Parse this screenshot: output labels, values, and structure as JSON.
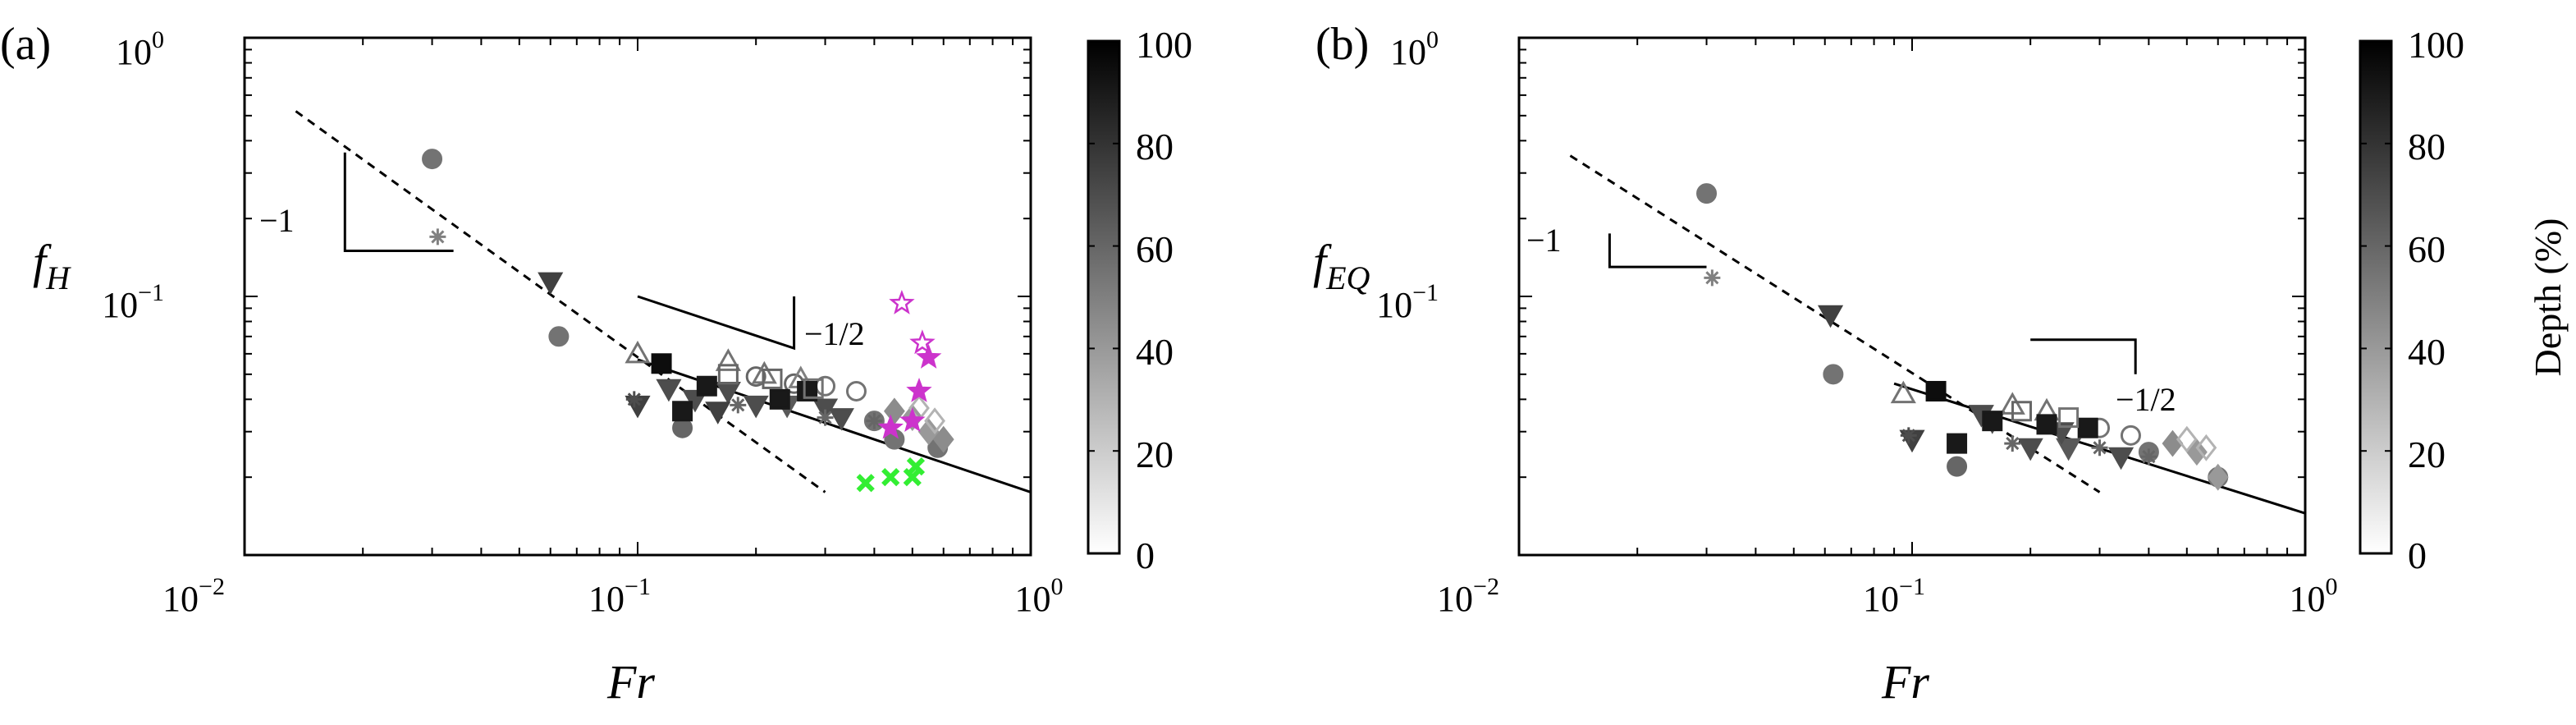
{
  "colorbar": {
    "label": "Depth (%)",
    "ticks": [
      "0",
      "20",
      "40",
      "60",
      "80",
      "100"
    ],
    "range": [
      0,
      100
    ]
  },
  "chart_data": [
    {
      "type": "scatter",
      "panel": "(a)",
      "xscale": "log",
      "yscale": "log",
      "xlim": [
        0.01,
        1
      ],
      "ylim": [
        0.01,
        1
      ],
      "xlabel": "Fr",
      "ylabel": "f_H",
      "xticks": [
        0.01,
        0.1,
        1
      ],
      "yticks": [
        0.1,
        1
      ],
      "slope_annotations": [
        {
          "label": "−1",
          "lines": [
            [
              0.018,
              0.36
            ],
            [
              0.018,
              0.15
            ],
            [
              0.034,
              0.15
            ]
          ]
        },
        {
          "label": "−1/2",
          "lines": [
            [
              0.1,
              0.1
            ],
            [
              0.25,
              0.063
            ],
            [
              0.25,
              0.1
            ]
          ]
        }
      ],
      "trend_lines": [
        {
          "style": "dashed",
          "points": [
            [
              0.0135,
              0.52
            ],
            [
              0.3,
              0.0175
            ]
          ]
        },
        {
          "style": "solid",
          "points": [
            [
              0.1,
              0.057
            ],
            [
              1,
              0.0175
            ]
          ]
        }
      ],
      "series": [
        {
          "marker": "circle",
          "fill": "filled",
          "points": [
            [
              0.03,
              0.34,
              55
            ],
            [
              0.063,
              0.07,
              55
            ],
            [
              0.13,
              0.031,
              60
            ],
            [
              0.4,
              0.033,
              55
            ],
            [
              0.58,
              0.026,
              55
            ],
            [
              0.45,
              0.028,
              55
            ]
          ]
        },
        {
          "marker": "circle",
          "fill": "open",
          "points": [
            [
              0.2,
              0.049,
              60
            ],
            [
              0.25,
              0.046,
              60
            ],
            [
              0.3,
              0.045,
              55
            ],
            [
              0.36,
              0.043,
              55
            ]
          ]
        },
        {
          "marker": "triangle-down",
          "fill": "filled",
          "points": [
            [
              0.06,
              0.114,
              75
            ],
            [
              0.1,
              0.038,
              75
            ],
            [
              0.14,
              0.04,
              70
            ],
            [
              0.17,
              0.043,
              70
            ],
            [
              0.2,
              0.038,
              70
            ],
            [
              0.24,
              0.038,
              65
            ],
            [
              0.3,
              0.037,
              70
            ],
            [
              0.33,
              0.034,
              70
            ],
            [
              0.12,
              0.044,
              70
            ],
            [
              0.16,
              0.036,
              75
            ]
          ]
        },
        {
          "marker": "triangle-up",
          "fill": "open",
          "points": [
            [
              0.1,
              0.06,
              55
            ],
            [
              0.17,
              0.056,
              55
            ],
            [
              0.21,
              0.05,
              55
            ],
            [
              0.26,
              0.048,
              50
            ]
          ]
        },
        {
          "marker": "square",
          "fill": "filled",
          "points": [
            [
              0.115,
              0.055,
              95
            ],
            [
              0.13,
              0.036,
              90
            ],
            [
              0.15,
              0.045,
              90
            ],
            [
              0.23,
              0.04,
              90
            ],
            [
              0.27,
              0.043,
              90
            ]
          ]
        },
        {
          "marker": "square",
          "fill": "open",
          "points": [
            [
              0.17,
              0.05,
              60
            ],
            [
              0.22,
              0.048,
              60
            ],
            [
              0.28,
              0.044,
              55
            ]
          ]
        },
        {
          "marker": "diamond",
          "fill": "filled",
          "points": [
            [
              0.45,
              0.036,
              45
            ],
            [
              0.5,
              0.034,
              40
            ],
            [
              0.55,
              0.03,
              40
            ],
            [
              0.6,
              0.028,
              45
            ]
          ]
        },
        {
          "marker": "diamond",
          "fill": "open",
          "points": [
            [
              0.52,
              0.037,
              30
            ],
            [
              0.57,
              0.033,
              30
            ]
          ]
        },
        {
          "marker": "asterisk",
          "fill": "line",
          "points": [
            [
              0.031,
              0.17,
              50
            ],
            [
              0.098,
              0.04,
              70
            ],
            [
              0.18,
              0.038,
              60
            ],
            [
              0.3,
              0.034,
              60
            ],
            [
              0.4,
              0.033,
              60
            ]
          ]
        },
        {
          "marker": "pentagram",
          "color": "#cc33cc",
          "fill": "mixed",
          "points": [
            [
              0.47,
              0.094
            ],
            [
              0.53,
              0.066
            ],
            [
              0.55,
              0.058
            ],
            [
              0.52,
              0.043
            ],
            [
              0.5,
              0.033
            ],
            [
              0.44,
              0.031
            ]
          ]
        },
        {
          "marker": "x-cross",
          "color": "#33ee33",
          "fill": "filled",
          "points": [
            [
              0.38,
              0.019
            ],
            [
              0.44,
              0.02
            ],
            [
              0.5,
              0.02
            ],
            [
              0.51,
              0.022
            ]
          ]
        }
      ]
    },
    {
      "type": "scatter",
      "panel": "(b)",
      "xscale": "log",
      "yscale": "log",
      "xlim": [
        0.01,
        1
      ],
      "ylim": [
        0.01,
        1
      ],
      "xlabel": "Fr",
      "ylabel": "f_EQ",
      "xticks": [
        0.01,
        0.1,
        1
      ],
      "yticks": [
        0.1,
        1
      ],
      "slope_annotations": [
        {
          "label": "−1",
          "lines": [
            [
              0.017,
              0.175
            ],
            [
              0.017,
              0.13
            ],
            [
              0.03,
              0.13
            ]
          ]
        },
        {
          "label": "−1/2",
          "lines": [
            [
              0.2,
              0.068
            ],
            [
              0.37,
              0.068
            ],
            [
              0.37,
              0.05
            ]
          ]
        }
      ],
      "trend_lines": [
        {
          "style": "dashed",
          "points": [
            [
              0.0135,
              0.35
            ],
            [
              0.3,
              0.0175
            ]
          ]
        },
        {
          "style": "solid",
          "points": [
            [
              0.09,
              0.046
            ],
            [
              1,
              0.0145
            ]
          ]
        }
      ],
      "series": [
        {
          "marker": "circle",
          "fill": "filled",
          "points": [
            [
              0.03,
              0.25,
              55
            ],
            [
              0.063,
              0.05,
              55
            ],
            [
              0.13,
              0.022,
              60
            ],
            [
              0.4,
              0.025,
              55
            ],
            [
              0.6,
              0.02,
              55
            ]
          ]
        },
        {
          "marker": "circle",
          "fill": "open",
          "points": [
            [
              0.3,
              0.031,
              55
            ],
            [
              0.36,
              0.029,
              55
            ]
          ]
        },
        {
          "marker": "triangle-down",
          "fill": "filled",
          "points": [
            [
              0.062,
              0.085,
              75
            ],
            [
              0.1,
              0.028,
              75
            ],
            [
              0.16,
              0.033,
              70
            ],
            [
              0.2,
              0.026,
              70
            ],
            [
              0.25,
              0.026,
              65
            ],
            [
              0.34,
              0.024,
              70
            ],
            [
              0.24,
              0.03,
              70
            ],
            [
              0.15,
              0.035,
              70
            ]
          ]
        },
        {
          "marker": "triangle-up",
          "fill": "open",
          "points": [
            [
              0.095,
              0.042,
              55
            ],
            [
              0.18,
              0.038,
              55
            ],
            [
              0.22,
              0.036,
              55
            ]
          ]
        },
        {
          "marker": "square",
          "fill": "filled",
          "points": [
            [
              0.115,
              0.043,
              95
            ],
            [
              0.13,
              0.027,
              90
            ],
            [
              0.16,
              0.033,
              90
            ],
            [
              0.22,
              0.032,
              90
            ],
            [
              0.28,
              0.031,
              90
            ]
          ]
        },
        {
          "marker": "square",
          "fill": "open",
          "points": [
            [
              0.19,
              0.036,
              60
            ],
            [
              0.25,
              0.034,
              55
            ]
          ]
        },
        {
          "marker": "diamond",
          "fill": "filled",
          "points": [
            [
              0.46,
              0.027,
              45
            ],
            [
              0.53,
              0.025,
              40
            ],
            [
              0.6,
              0.02,
              40
            ]
          ]
        },
        {
          "marker": "diamond",
          "fill": "open",
          "points": [
            [
              0.5,
              0.028,
              30
            ],
            [
              0.56,
              0.026,
              30
            ]
          ]
        },
        {
          "marker": "asterisk",
          "fill": "line",
          "points": [
            [
              0.031,
              0.118,
              50
            ],
            [
              0.098,
              0.029,
              70
            ],
            [
              0.18,
              0.027,
              60
            ],
            [
              0.3,
              0.026,
              60
            ],
            [
              0.4,
              0.024,
              60
            ]
          ]
        }
      ]
    }
  ],
  "panels": [
    {
      "letter": "(a)",
      "ylabel_main": "f",
      "ylabel_sub": "H",
      "xlabel": "Fr",
      "xtick_labels": [
        {
          "base": "10",
          "exp": "−2"
        },
        {
          "base": "10",
          "exp": "−1"
        },
        {
          "base": "10",
          "exp": "0"
        }
      ],
      "ytick_labels": [
        {
          "base": "10",
          "exp": "−1"
        },
        {
          "base": "10",
          "exp": "0"
        }
      ],
      "slope_labels": [
        "−1",
        "−1/2"
      ]
    },
    {
      "letter": "(b)",
      "ylabel_main": "f",
      "ylabel_sub": "EQ",
      "xlabel": "Fr",
      "xtick_labels": [
        {
          "base": "10",
          "exp": "−2"
        },
        {
          "base": "10",
          "exp": "−1"
        },
        {
          "base": "10",
          "exp": "0"
        }
      ],
      "ytick_labels": [
        {
          "base": "10",
          "exp": "−1"
        },
        {
          "base": "10",
          "exp": "0"
        }
      ],
      "slope_labels": [
        "−1",
        "−1/2"
      ]
    }
  ]
}
